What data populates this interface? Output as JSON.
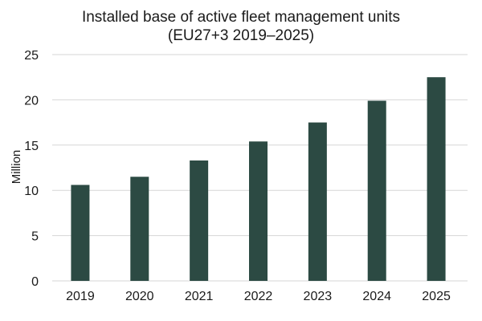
{
  "chart_data": {
    "type": "bar",
    "title": "Installed base of active fleet management units",
    "subtitle": "(EU27+3  2019–2025)",
    "xlabel": "",
    "ylabel": "Million",
    "categories": [
      "2019",
      "2020",
      "2021",
      "2022",
      "2023",
      "2024",
      "2025"
    ],
    "values": [
      10.6,
      11.5,
      13.3,
      15.4,
      17.5,
      19.9,
      22.5
    ],
    "ylim": [
      0,
      25
    ],
    "yticks": [
      0,
      5,
      10,
      15,
      20,
      25
    ],
    "grid": true,
    "legend": "none",
    "bar_color": "#2c4a43",
    "grid_color": "#d6d6d6"
  }
}
